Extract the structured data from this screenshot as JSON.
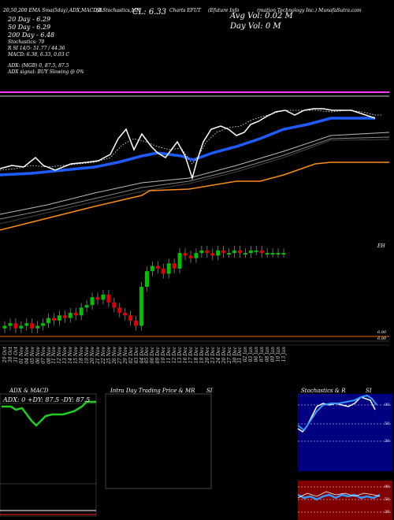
{
  "header": {
    "ema_line": "20,50,200 EMA Sma(5day),ADX,MACD,B",
    "series_label": "SLStochastics,MR",
    "close_label": "CL: 6.33",
    "symbol_label": "Charts EFUT",
    "company_label": "(Efuture  Info",
    "company_label2": "rmation Technology Inc.) MunafaSutra.com",
    "avg_vol": "Avg Vol: 0.02  M",
    "day_vol": "Day Vol: 0   M",
    "ema20": "20  Day - 6.29",
    "ema50": "50  Day - 6.29",
    "ema200": "200  Day - 6.48",
    "stoch_line": "Stochastics: 70",
    "rsi_line": "R    SI 14/5: 51.77 / 44.36",
    "macd_line": "MACD: 6.38, 6.33, 0.03 C",
    "adx_line": "ADX:                               (MGB) 0, 87.5,  87.5",
    "adx_signal": "ADX  signal:                              BUY Slowing @ 0%"
  },
  "labels": {
    "eh": "EH",
    "price_lo": "6.00",
    "price_lo2": "6.00"
  },
  "dates": [
    "29 Oct",
    "30 Oct",
    "31 Oct",
    "01 Nov",
    "04 Nov",
    "05 Nov",
    "06 Nov",
    "07 Nov",
    "08 Nov",
    "11 Nov",
    "12 Nov",
    "13 Nov",
    "14 Nov",
    "15 Nov",
    "18 Nov",
    "19 Nov",
    "20 Nov",
    "21 Nov",
    "22 Nov",
    "25 Nov",
    "26 Nov",
    "27 Nov",
    "29 Nov",
    "02 Dec",
    "03 Dec",
    "04 Dec",
    "05 Dec",
    "06 Dec",
    "09 Dec",
    "10 Dec",
    "11 Dec",
    "12 Dec",
    "13 Dec",
    "16 Dec",
    "17 Dec",
    "18 Dec",
    "19 Dec",
    "20 Dec",
    "23 Dec",
    "24 Dec",
    "26 Dec",
    "27 Dec",
    "30 Dec",
    "31 Dec",
    "02 Jan",
    "03 Jan",
    "06 Jan",
    "07 Jan",
    "08 Jan",
    "09 Jan",
    "10 Jan",
    "13 Jan"
  ],
  "panels": {
    "adx_title": "ADX  & MACD",
    "adx_values": "ADX: 0  +DY: 87.5  -DY: 87.5",
    "intraday_title": "Intra  Day Trading Price  & MR",
    "intraday_si": "SI",
    "stoch_title": "Stochastics & R",
    "stoch_si": "SI",
    "stoch_ticks": [
      "80",
      "50",
      "20"
    ],
    "rsi_ticks": [
      "80",
      "50",
      "20"
    ]
  },
  "colors": {
    "up": "#00c000",
    "down": "#e00000",
    "ema20": "#ffffff",
    "ema50": "#1e5cff",
    "ema200": "#ff8c1a",
    "magenta": "#ff33ff",
    "adx_green": "#22cc22",
    "stoch_bg": "#000080",
    "rsi_bg": "#800000"
  },
  "chart_data": {
    "type": "candlestick",
    "title": "EFUT (Efuture Information Technology Inc.)",
    "series": [
      {
        "name": "Close",
        "values": [
          6.05,
          6.06,
          6.04,
          6.05,
          6.06,
          6.04,
          6.05,
          6.06,
          6.08,
          6.07,
          6.09,
          6.08,
          6.1,
          6.09,
          6.12,
          6.13,
          6.16,
          6.15,
          6.17,
          6.14,
          6.12,
          6.1,
          6.09,
          6.07,
          6.05,
          6.2,
          6.26,
          6.28,
          6.27,
          6.25,
          6.29,
          6.27,
          6.33,
          6.32,
          6.31,
          6.33,
          6.34,
          6.33,
          6.32,
          6.34,
          6.33,
          6.33,
          6.34,
          6.33,
          6.33,
          6.34,
          6.34,
          6.33,
          6.33,
          6.33,
          6.33,
          6.33
        ]
      }
    ],
    "indicators": {
      "ema20": 6.29,
      "ema50": 6.29,
      "ema200": 6.48,
      "stochastics": 70,
      "rsi": [
        51.77,
        44.36
      ],
      "macd": [
        6.38,
        6.33,
        0.03
      ],
      "adx": [
        0,
        87.5,
        87.5
      ]
    }
  }
}
